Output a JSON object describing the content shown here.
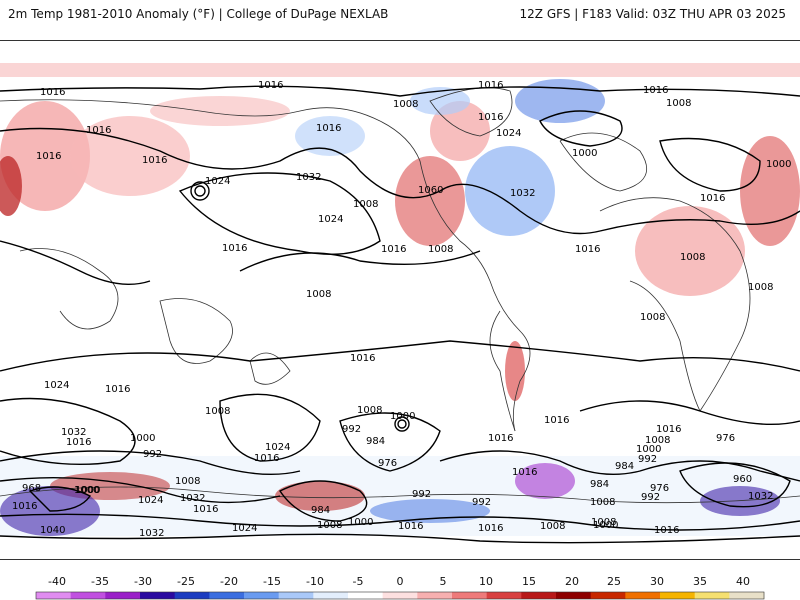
{
  "header": {
    "title_left": "2m Temp 1981-2010 Anomaly (°F) | College of DuPage NEXLAB",
    "title_right": "12Z GFS | F183 Valid: 03Z THU APR 03 2025"
  },
  "colors": {
    "colorbar": [
      "#e08cf0",
      "#c050e0",
      "#9a20c8",
      "#2a0aa0",
      "#1c3cc0",
      "#3b6ee0",
      "#6a9bf0",
      "#a9c8f8",
      "#e3eefc",
      "#ffffff",
      "#fde0e0",
      "#f7b0b0",
      "#ee7a7a",
      "#d84040",
      "#b81818",
      "#8e0000",
      "#c82800",
      "#f07000",
      "#f5b400",
      "#f5e070",
      "#e8e0c8"
    ]
  },
  "colorbar": {
    "ticks": [
      "-40",
      "-35",
      "-30",
      "-25",
      "-20",
      "-15",
      "-10",
      "-5",
      "0",
      "5",
      "10",
      "15",
      "20",
      "25",
      "30",
      "35",
      "40"
    ]
  },
  "isobar_labels": [
    "1016",
    "1016",
    "1016",
    "1016",
    "1016",
    "1016",
    "1016",
    "1016",
    "1008",
    "1024",
    "1024",
    "1000",
    "1016",
    "1008",
    "1016",
    "1032",
    "1008",
    "1060",
    "1024",
    "1032",
    "1016",
    "1008",
    "1016",
    "1008",
    "1000",
    "1016",
    "1008",
    "1008",
    "1008",
    "1016",
    "1024",
    "1016",
    "1008",
    "1032",
    "1016",
    "1000",
    "992",
    "1024",
    "1016",
    "1008",
    "1000",
    "992",
    "984",
    "976",
    "1016",
    "1016",
    "1008",
    "1016",
    "976",
    "1000",
    "992",
    "984",
    "1016",
    "984",
    "1008",
    "960",
    "976",
    "992",
    "1032",
    "1008",
    "992",
    "992",
    "984",
    "1008",
    "1000",
    "1000",
    "1016",
    "1024",
    "1032",
    "1040",
    "1016",
    "1008",
    "1000",
    "1016",
    "1024",
    "1032",
    "1016",
    "968",
    "1000",
    "1008",
    "1016"
  ]
}
